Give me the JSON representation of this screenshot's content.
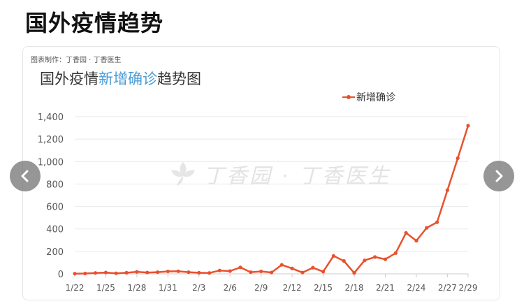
{
  "page": {
    "title": "国外疫情趋势"
  },
  "card": {
    "credit": "图表制作：丁香园 · 丁香医生",
    "watermark": "丁香园 · 丁香医生"
  },
  "chart_data": {
    "type": "line",
    "title_prefix": "国外疫情",
    "title_highlight": "新增确诊",
    "title_suffix": "趋势图",
    "legend_position": "top-right",
    "x": [
      "1/22",
      "1/23",
      "1/24",
      "1/25",
      "1/26",
      "1/27",
      "1/28",
      "1/29",
      "1/30",
      "1/31",
      "2/1",
      "2/2",
      "2/3",
      "2/4",
      "2/5",
      "2/6",
      "2/7",
      "2/8",
      "2/9",
      "2/10",
      "2/11",
      "2/12",
      "2/13",
      "2/14",
      "2/15",
      "2/16",
      "2/17",
      "2/18",
      "2/19",
      "2/20",
      "2/21",
      "2/22",
      "2/23",
      "2/24",
      "2/25",
      "2/26",
      "2/27",
      "2/28",
      "2/29"
    ],
    "xticks": [
      "1/22",
      "1/25",
      "1/28",
      "1/31",
      "2/3",
      "2/6",
      "2/9",
      "2/12",
      "2/15",
      "2/18",
      "2/21",
      "2/24",
      "2/27",
      "2/29"
    ],
    "ylim": [
      0,
      1400
    ],
    "yticks": [
      0,
      200,
      400,
      600,
      800,
      1000,
      1200,
      1400
    ],
    "ytick_labels": [
      "0",
      "200",
      "400",
      "600",
      "800",
      "1,000",
      "1,200",
      "1,400"
    ],
    "grid": true,
    "series": [
      {
        "name": "新增确诊",
        "color": "#e8512e",
        "values": [
          2,
          3,
          8,
          12,
          5,
          10,
          18,
          12,
          15,
          22,
          23,
          15,
          10,
          8,
          30,
          25,
          58,
          15,
          22,
          12,
          80,
          48,
          12,
          55,
          20,
          160,
          115,
          8,
          120,
          150,
          130,
          185,
          365,
          295,
          410,
          460,
          745,
          1030,
          1320
        ]
      }
    ]
  },
  "nav": {
    "prev_icon": "chevron-left-icon",
    "next_icon": "chevron-right-icon"
  }
}
